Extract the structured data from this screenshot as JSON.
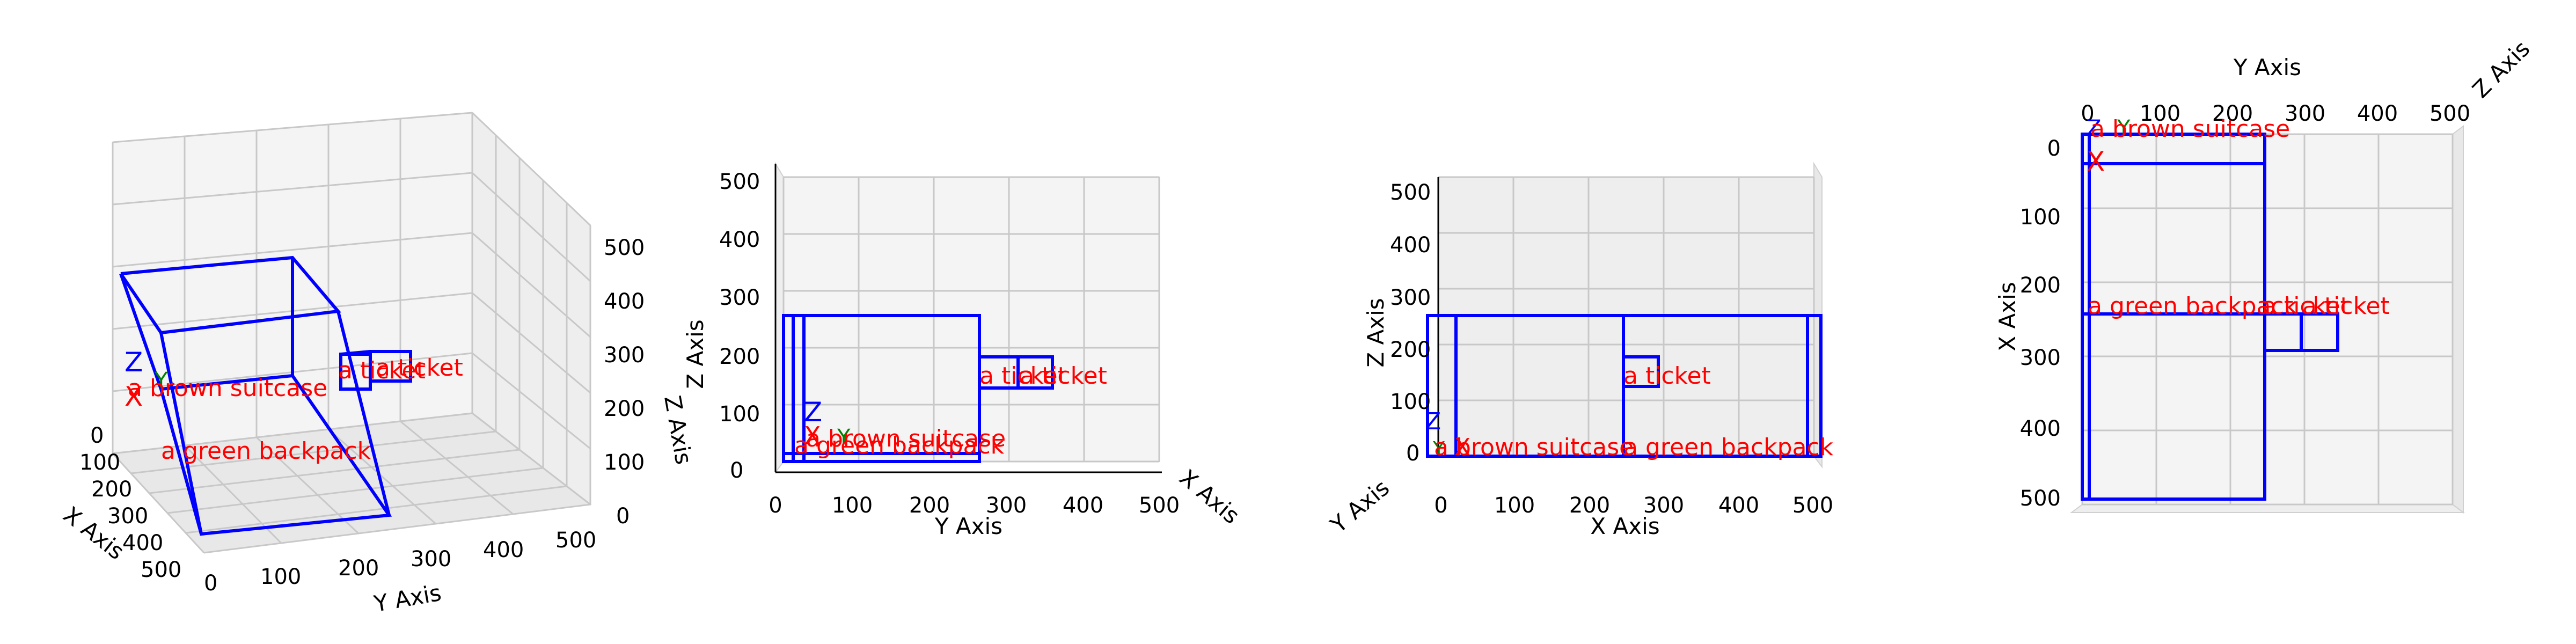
{
  "axis_labels": {
    "x": "X Axis",
    "y": "Y Axis",
    "z": "Z Axis"
  },
  "colors": {
    "box": "#0000ff",
    "label": "#ff0000",
    "x_marker": "#ff0000",
    "y_marker": "#008000",
    "z_marker": "#0000ff"
  },
  "markers": {
    "x": "X",
    "y": "Y",
    "z": "Z"
  },
  "objects": [
    {
      "label": "a brown suitcase",
      "x": [
        0,
        30
      ],
      "y": [
        0,
        260
      ],
      "z": [
        0,
        260
      ]
    },
    {
      "label": "a green backpack",
      "x": [
        30,
        510
      ],
      "y": [
        0,
        260
      ],
      "z": [
        0,
        260
      ]
    },
    {
      "label": "a ticket",
      "x": [
        250,
        300
      ],
      "y": [
        260,
        310
      ],
      "z": [
        150,
        200
      ]
    },
    {
      "label": "a ticket",
      "x": [
        250,
        300
      ],
      "y": [
        310,
        360
      ],
      "z": [
        150,
        200
      ]
    }
  ],
  "ticks": {
    "xy": [
      "0",
      "100",
      "200",
      "300",
      "400",
      "500"
    ],
    "z": [
      "0",
      "100",
      "200",
      "300",
      "400",
      "500"
    ]
  },
  "chart_data": [
    {
      "type": "scatter",
      "view": "perspective",
      "xlim": [
        0,
        500
      ],
      "ylim": [
        0,
        500
      ],
      "zlim": [
        0,
        500
      ],
      "grid": true
    },
    {
      "type": "scatter",
      "view": "front (Y-Z)",
      "xlim": [
        0,
        500
      ],
      "ylim": [
        0,
        500
      ],
      "zlim": [
        0,
        500
      ],
      "grid": true
    },
    {
      "type": "scatter",
      "view": "side (X-Z)",
      "xlim": [
        0,
        500
      ],
      "ylim": [
        0,
        500
      ],
      "zlim": [
        0,
        500
      ],
      "grid": true
    },
    {
      "type": "scatter",
      "view": "top (Y-X)",
      "xlim": [
        0,
        500
      ],
      "ylim": [
        0,
        500
      ],
      "zlim": [
        0,
        500
      ],
      "grid": true
    }
  ]
}
